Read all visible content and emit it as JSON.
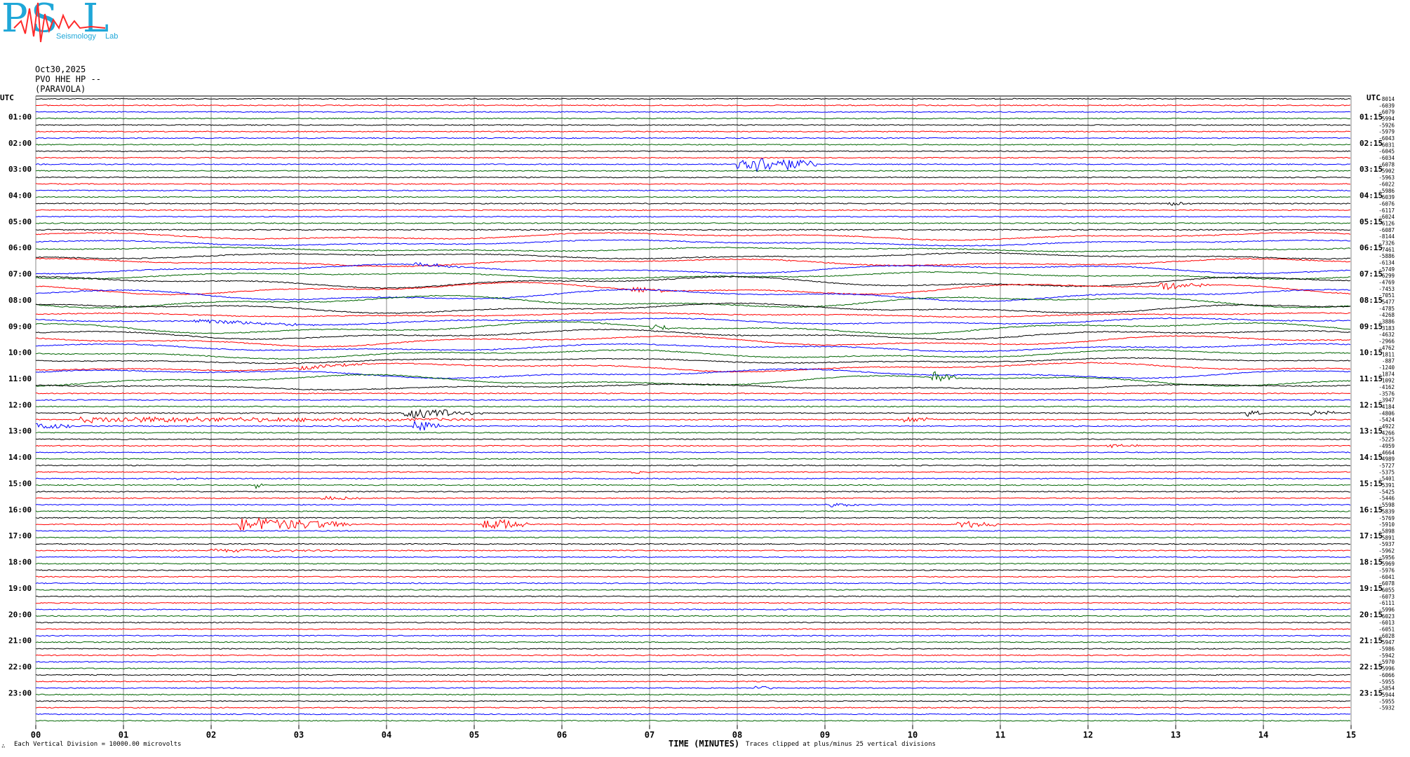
{
  "logo": {
    "letters": [
      "P",
      "S",
      "L"
    ],
    "small_words": [
      "Seismology",
      "Lab"
    ],
    "colors": {
      "letters": "#1fa7d8",
      "trace": "#ff2a2a"
    }
  },
  "header": {
    "date": "Oct30,2025",
    "station": "PVO HHE HP --",
    "location": "(PARAVOLA)"
  },
  "axis": {
    "left_title": "UTC",
    "right_title": "UTC",
    "x_title": "TIME (MINUTES)",
    "x_ticks": [
      "00",
      "01",
      "02",
      "03",
      "04",
      "05",
      "06",
      "07",
      "08",
      "09",
      "10",
      "11",
      "12",
      "13",
      "14",
      "15"
    ],
    "left_hours": [
      "01:00",
      "02:00",
      "03:00",
      "04:00",
      "05:00",
      "06:00",
      "07:00",
      "08:00",
      "09:00",
      "10:00",
      "11:00",
      "12:00",
      "13:00",
      "14:00",
      "15:00",
      "16:00",
      "17:00",
      "18:00",
      "19:00",
      "20:00",
      "21:00",
      "22:00",
      "23:00"
    ],
    "right_hours": [
      "01:15",
      "02:15",
      "03:15",
      "04:15",
      "05:15",
      "06:15",
      "07:15",
      "08:15",
      "09:15",
      "10:15",
      "11:15",
      "12:15",
      "13:15",
      "14:15",
      "15:15",
      "16:15",
      "17:15",
      "18:15",
      "19:15",
      "20:15",
      "21:15",
      "22:15",
      "23:15"
    ]
  },
  "footer": {
    "left_mark": "∴",
    "division_note": "Each Vertical Division = 10000.00 microvolts",
    "clip_note": "Traces clipped at plus/minus 25 vertical divisions"
  },
  "chart_data": {
    "type": "line",
    "x_unit": "minutes",
    "xlim": [
      0,
      15
    ],
    "trace_minutes": 15,
    "traces_per_hour": 4,
    "total_traces": 96,
    "color_cycle": [
      "#000000",
      "#ff0000",
      "#0000ff",
      "#006400"
    ],
    "grid": "vertical lines every minute",
    "right_values": [
      "-8014",
      "-6039",
      "-6079",
      "-5994",
      "-5926",
      "-5979",
      "-6043",
      "-6031",
      "-6045",
      "-6034",
      "-6078",
      "-5902",
      "-5963",
      "-6022",
      "-5986",
      "-6039",
      "-6076",
      "-6117",
      "-6024",
      "-6126",
      "-6087",
      "-8144",
      "-7326",
      "-7461",
      "-5886",
      "-6134",
      "-5749",
      "-6299",
      "-4769",
      "-7453",
      "-7051",
      "-5477",
      "-4785",
      "-4268",
      "-3886",
      "-3183",
      "-4632",
      "-2966",
      "-4762",
      "-1811",
      "-887",
      "-1240",
      "-1874",
      "-1092",
      "-4162",
      "-3576",
      "-3947",
      "-4184",
      "-4806",
      "-5424",
      "-4922",
      "-4266",
      "-5225",
      "-4959",
      "-4664",
      "-4989",
      "-5727",
      "-5375",
      "-5401",
      "-5391",
      "-5425",
      "-5446",
      "-5598",
      "-5839",
      "-5769",
      "-5910",
      "-5898",
      "-5891",
      "-5937",
      "-5962",
      "-5956",
      "-5969",
      "-5976",
      "-6041",
      "-6078",
      "-6055",
      "-6073",
      "-6111",
      "-5996",
      "-6023",
      "-6013",
      "-6051",
      "-6028",
      "-5947",
      "-5986",
      "-5942",
      "-5970",
      "-5996",
      "-6066",
      "-5955",
      "-5854",
      "-5944",
      "-5955",
      "-5932"
    ],
    "events": [
      {
        "trace": 10,
        "minute": 8.0,
        "dur": 0.9,
        "amp": 14
      },
      {
        "trace": 16,
        "minute": 12.9,
        "dur": 0.3,
        "amp": 3
      },
      {
        "trace": 26,
        "minute": 4.3,
        "dur": 0.6,
        "amp": 3
      },
      {
        "trace": 29,
        "minute": 6.8,
        "dur": 0.4,
        "amp": 5
      },
      {
        "trace": 29,
        "minute": 12.8,
        "dur": 0.6,
        "amp": 6
      },
      {
        "trace": 34,
        "minute": 1.8,
        "dur": 1.4,
        "amp": 3
      },
      {
        "trace": 35,
        "minute": 7.0,
        "dur": 0.3,
        "amp": 5
      },
      {
        "trace": 41,
        "minute": 3.0,
        "dur": 0.8,
        "amp": 3
      },
      {
        "trace": 43,
        "minute": 10.2,
        "dur": 0.3,
        "amp": 9
      },
      {
        "trace": 48,
        "minute": 4.2,
        "dur": 0.9,
        "amp": 8
      },
      {
        "trace": 48,
        "minute": 13.8,
        "dur": 0.2,
        "amp": 6
      },
      {
        "trace": 48,
        "minute": 14.5,
        "dur": 0.3,
        "amp": 7
      },
      {
        "trace": 49,
        "minute": 0.5,
        "dur": 4.5,
        "amp": 4
      },
      {
        "trace": 49,
        "minute": 9.9,
        "dur": 0.4,
        "amp": 4
      },
      {
        "trace": 50,
        "minute": 0.0,
        "dur": 0.4,
        "amp": 6
      },
      {
        "trace": 50,
        "minute": 4.3,
        "dur": 0.3,
        "amp": 10
      },
      {
        "trace": 53,
        "minute": 12.2,
        "dur": 0.4,
        "amp": 3
      },
      {
        "trace": 57,
        "minute": 6.8,
        "dur": 0.2,
        "amp": 2
      },
      {
        "trace": 58,
        "minute": 1.6,
        "dur": 0.3,
        "amp": 2
      },
      {
        "trace": 59,
        "minute": 2.5,
        "dur": 0.1,
        "amp": 6
      },
      {
        "trace": 61,
        "minute": 3.2,
        "dur": 0.5,
        "amp": 3
      },
      {
        "trace": 62,
        "minute": 9.0,
        "dur": 0.4,
        "amp": 3
      },
      {
        "trace": 65,
        "minute": 2.3,
        "dur": 1.3,
        "amp": 10
      },
      {
        "trace": 65,
        "minute": 5.1,
        "dur": 0.5,
        "amp": 10
      },
      {
        "trace": 65,
        "minute": 10.5,
        "dur": 0.5,
        "amp": 6
      },
      {
        "trace": 69,
        "minute": 2.0,
        "dur": 1.5,
        "amp": 2
      },
      {
        "trace": 90,
        "minute": 8.2,
        "dur": 0.2,
        "amp": 3
      }
    ],
    "wander_traces": [
      21,
      22,
      23,
      24,
      25,
      26,
      27,
      28,
      29,
      30,
      31,
      32,
      33,
      34,
      35,
      36,
      37,
      38,
      39,
      40,
      41,
      42,
      43,
      44
    ]
  }
}
